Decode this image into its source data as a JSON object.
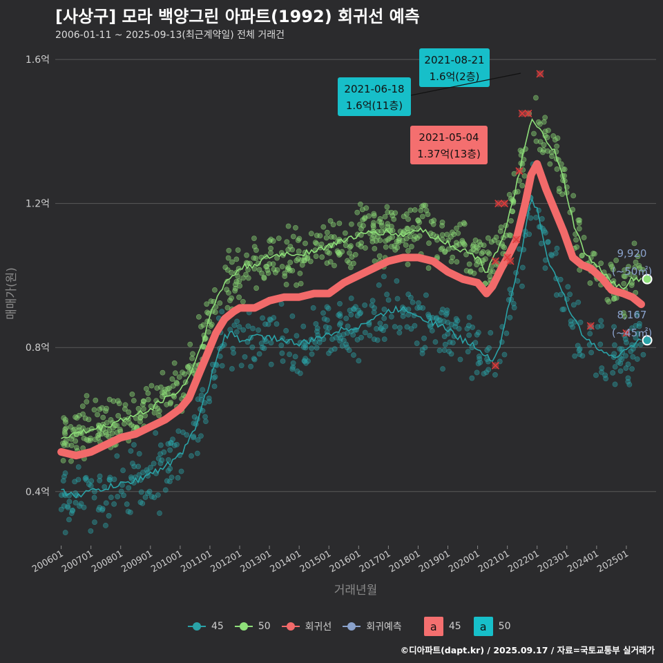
{
  "title": "[사상구] 모라 백양그린 아파트(1992) 회귀선 예측",
  "subtitle": "2006-01-11 ~ 2025-09-13(최근계약일) 전체 거래건",
  "credit": "©디아파트(dapt.kr) / 2025.09.17 / 자료=국토교통부 실거래가",
  "colors": {
    "background": "#2b2b2d",
    "grid": "#5a5a5a",
    "series_45": "#2aa3a8",
    "series_50": "#8fe07a",
    "regression": "#f26a6a",
    "regression_forecast": "#8aa2cc",
    "label_45_box": "#f46f6f",
    "label_50_box": "#17bfc9"
  },
  "legend": {
    "items": [
      {
        "label": "45",
        "color": "#2aa3a8"
      },
      {
        "label": "50",
        "color": "#8fe07a"
      },
      {
        "label": "회귀선",
        "color": "#f26a6a"
      },
      {
        "label": "회귀예측",
        "color": "#8aa2cc"
      }
    ],
    "boxes": [
      {
        "glyph": "a",
        "label": "45",
        "color": "#f46f6f"
      },
      {
        "glyph": "a",
        "label": "50",
        "color": "#17bfc9"
      }
    ]
  },
  "chart_data": {
    "type": "scatter",
    "xlabel": "거래년월",
    "ylabel": "매매가(원)",
    "x_range": [
      "2006-01",
      "2025-09"
    ],
    "ylim": [
      0.25,
      1.65
    ],
    "y_ticks": [
      {
        "value": 0.4,
        "label": "0.4억"
      },
      {
        "value": 0.8,
        "label": "0.8억"
      },
      {
        "value": 1.2,
        "label": "1.2억"
      },
      {
        "value": 1.6,
        "label": "1.6억"
      }
    ],
    "x_tick_labels": [
      "200601",
      "200701",
      "200801",
      "200901",
      "201001",
      "201101",
      "201201",
      "201301",
      "201401",
      "201501",
      "201601",
      "201701",
      "201801",
      "201901",
      "202001",
      "202101",
      "202201",
      "202301",
      "202401",
      "202501"
    ],
    "grid": true,
    "series": [
      {
        "name": "45",
        "unit": "억",
        "trend": [
          [
            2006.0,
            0.4
          ],
          [
            2006.5,
            0.39
          ],
          [
            2007.0,
            0.4
          ],
          [
            2007.5,
            0.41
          ],
          [
            2008.0,
            0.42
          ],
          [
            2008.5,
            0.43
          ],
          [
            2009.0,
            0.45
          ],
          [
            2009.5,
            0.47
          ],
          [
            2010.0,
            0.5
          ],
          [
            2010.3,
            0.54
          ],
          [
            2010.6,
            0.6
          ],
          [
            2010.9,
            0.68
          ],
          [
            2011.2,
            0.76
          ],
          [
            2011.5,
            0.83
          ],
          [
            2011.8,
            0.84
          ],
          [
            2012.0,
            0.82
          ],
          [
            2012.5,
            0.83
          ],
          [
            2013.0,
            0.83
          ],
          [
            2013.5,
            0.82
          ],
          [
            2014.0,
            0.81
          ],
          [
            2014.5,
            0.82
          ],
          [
            2015.0,
            0.84
          ],
          [
            2015.5,
            0.85
          ],
          [
            2016.0,
            0.86
          ],
          [
            2016.5,
            0.88
          ],
          [
            2017.0,
            0.9
          ],
          [
            2017.5,
            0.91
          ],
          [
            2018.0,
            0.89
          ],
          [
            2018.5,
            0.87
          ],
          [
            2019.0,
            0.85
          ],
          [
            2019.5,
            0.82
          ],
          [
            2020.0,
            0.8
          ],
          [
            2020.3,
            0.78
          ],
          [
            2020.5,
            0.76
          ],
          [
            2020.8,
            0.82
          ],
          [
            2021.0,
            0.9
          ],
          [
            2021.3,
            1.0
          ],
          [
            2021.6,
            1.12
          ],
          [
            2021.8,
            1.22
          ],
          [
            2022.0,
            1.18
          ],
          [
            2022.3,
            1.06
          ],
          [
            2022.6,
            1.0
          ],
          [
            2022.9,
            0.95
          ],
          [
            2023.2,
            0.88
          ],
          [
            2023.5,
            0.84
          ],
          [
            2023.8,
            0.82
          ],
          [
            2024.2,
            0.79
          ],
          [
            2024.5,
            0.77
          ],
          [
            2024.9,
            0.79
          ],
          [
            2025.2,
            0.81
          ],
          [
            2025.5,
            0.82
          ]
        ]
      },
      {
        "name": "50",
        "unit": "억",
        "trend": [
          [
            2006.0,
            0.55
          ],
          [
            2006.5,
            0.56
          ],
          [
            2007.0,
            0.57
          ],
          [
            2007.5,
            0.58
          ],
          [
            2008.0,
            0.6
          ],
          [
            2008.5,
            0.61
          ],
          [
            2009.0,
            0.63
          ],
          [
            2009.5,
            0.66
          ],
          [
            2010.0,
            0.68
          ],
          [
            2010.3,
            0.72
          ],
          [
            2010.6,
            0.78
          ],
          [
            2010.9,
            0.86
          ],
          [
            2011.2,
            0.93
          ],
          [
            2011.5,
            0.98
          ],
          [
            2011.8,
            1.0
          ],
          [
            2012.0,
            1.02
          ],
          [
            2012.5,
            1.03
          ],
          [
            2013.0,
            1.05
          ],
          [
            2013.5,
            1.06
          ],
          [
            2014.0,
            1.06
          ],
          [
            2014.5,
            1.07
          ],
          [
            2015.0,
            1.08
          ],
          [
            2015.5,
            1.1
          ],
          [
            2016.0,
            1.11
          ],
          [
            2016.5,
            1.12
          ],
          [
            2017.0,
            1.12
          ],
          [
            2017.5,
            1.11
          ],
          [
            2018.0,
            1.13
          ],
          [
            2018.5,
            1.11
          ],
          [
            2019.0,
            1.09
          ],
          [
            2019.5,
            1.07
          ],
          [
            2020.0,
            1.05
          ],
          [
            2020.3,
            1.01
          ],
          [
            2020.5,
            1.05
          ],
          [
            2020.8,
            1.09
          ],
          [
            2021.0,
            1.14
          ],
          [
            2021.3,
            1.25
          ],
          [
            2021.6,
            1.36
          ],
          [
            2021.8,
            1.43
          ],
          [
            2022.0,
            1.41
          ],
          [
            2022.3,
            1.38
          ],
          [
            2022.6,
            1.34
          ],
          [
            2022.9,
            1.26
          ],
          [
            2023.2,
            1.15
          ],
          [
            2023.5,
            1.08
          ],
          [
            2023.8,
            1.04
          ],
          [
            2024.2,
            1.01
          ],
          [
            2024.5,
            0.98
          ],
          [
            2024.9,
            0.97
          ],
          [
            2025.2,
            0.99
          ],
          [
            2025.5,
            0.99
          ]
        ]
      }
    ],
    "regression": [
      [
        2006.0,
        0.51
      ],
      [
        2006.5,
        0.5
      ],
      [
        2007.0,
        0.51
      ],
      [
        2007.5,
        0.53
      ],
      [
        2008.0,
        0.55
      ],
      [
        2008.5,
        0.56
      ],
      [
        2009.0,
        0.58
      ],
      [
        2009.5,
        0.6
      ],
      [
        2010.0,
        0.63
      ],
      [
        2010.3,
        0.66
      ],
      [
        2010.6,
        0.72
      ],
      [
        2010.9,
        0.78
      ],
      [
        2011.2,
        0.84
      ],
      [
        2011.5,
        0.88
      ],
      [
        2011.8,
        0.9
      ],
      [
        2012.0,
        0.91
      ],
      [
        2012.5,
        0.91
      ],
      [
        2013.0,
        0.93
      ],
      [
        2013.5,
        0.94
      ],
      [
        2014.0,
        0.94
      ],
      [
        2014.5,
        0.95
      ],
      [
        2015.0,
        0.95
      ],
      [
        2015.5,
        0.98
      ],
      [
        2016.0,
        1.0
      ],
      [
        2016.5,
        1.02
      ],
      [
        2017.0,
        1.04
      ],
      [
        2017.5,
        1.05
      ],
      [
        2018.0,
        1.05
      ],
      [
        2018.5,
        1.04
      ],
      [
        2019.0,
        1.01
      ],
      [
        2019.5,
        0.99
      ],
      [
        2020.0,
        0.98
      ],
      [
        2020.3,
        0.95
      ],
      [
        2020.5,
        0.97
      ],
      [
        2020.8,
        1.02
      ],
      [
        2021.0,
        1.05
      ],
      [
        2021.3,
        1.1
      ],
      [
        2021.6,
        1.2
      ],
      [
        2021.8,
        1.28
      ],
      [
        2022.0,
        1.31
      ],
      [
        2022.3,
        1.24
      ],
      [
        2022.6,
        1.18
      ],
      [
        2022.9,
        1.12
      ],
      [
        2023.2,
        1.05
      ],
      [
        2023.5,
        1.03
      ],
      [
        2023.8,
        1.02
      ],
      [
        2024.2,
        0.99
      ],
      [
        2024.5,
        0.96
      ],
      [
        2024.9,
        0.95
      ],
      [
        2025.2,
        0.94
      ],
      [
        2025.5,
        0.92
      ]
    ],
    "excluded_points": [
      [
        2020.7,
        1.2
      ],
      [
        2020.9,
        1.2
      ],
      [
        2021.0,
        1.05
      ],
      [
        2021.1,
        1.04
      ],
      [
        2021.3,
        1.1
      ],
      [
        2021.4,
        1.29
      ],
      [
        2021.5,
        1.45
      ],
      [
        2021.7,
        1.45
      ],
      [
        2022.1,
        1.56
      ],
      [
        2020.6,
        1.04
      ],
      [
        2020.6,
        0.75
      ],
      [
        2023.8,
        0.86
      ],
      [
        2025.0,
        0.84
      ]
    ],
    "annotations": [
      {
        "date": "2021-08-21",
        "value_text": "1.6억(2층)",
        "type": "50",
        "x": 2021.6,
        "y": 1.6
      },
      {
        "date": "2021-06-18",
        "value_text": "1.6억(11층)",
        "type": "50",
        "x": 2021.45,
        "y": 1.6
      },
      {
        "date": "2021-05-04",
        "value_text": "1.37억(13층)",
        "type": "45",
        "x": 2021.35,
        "y": 1.37
      }
    ],
    "forecasts": [
      {
        "value": "9,920",
        "area": "(~50㎡)",
        "x": 2025.7,
        "y": 0.99
      },
      {
        "value": "8,167",
        "area": "(~45㎡)",
        "x": 2025.7,
        "y": 0.82
      }
    ]
  }
}
